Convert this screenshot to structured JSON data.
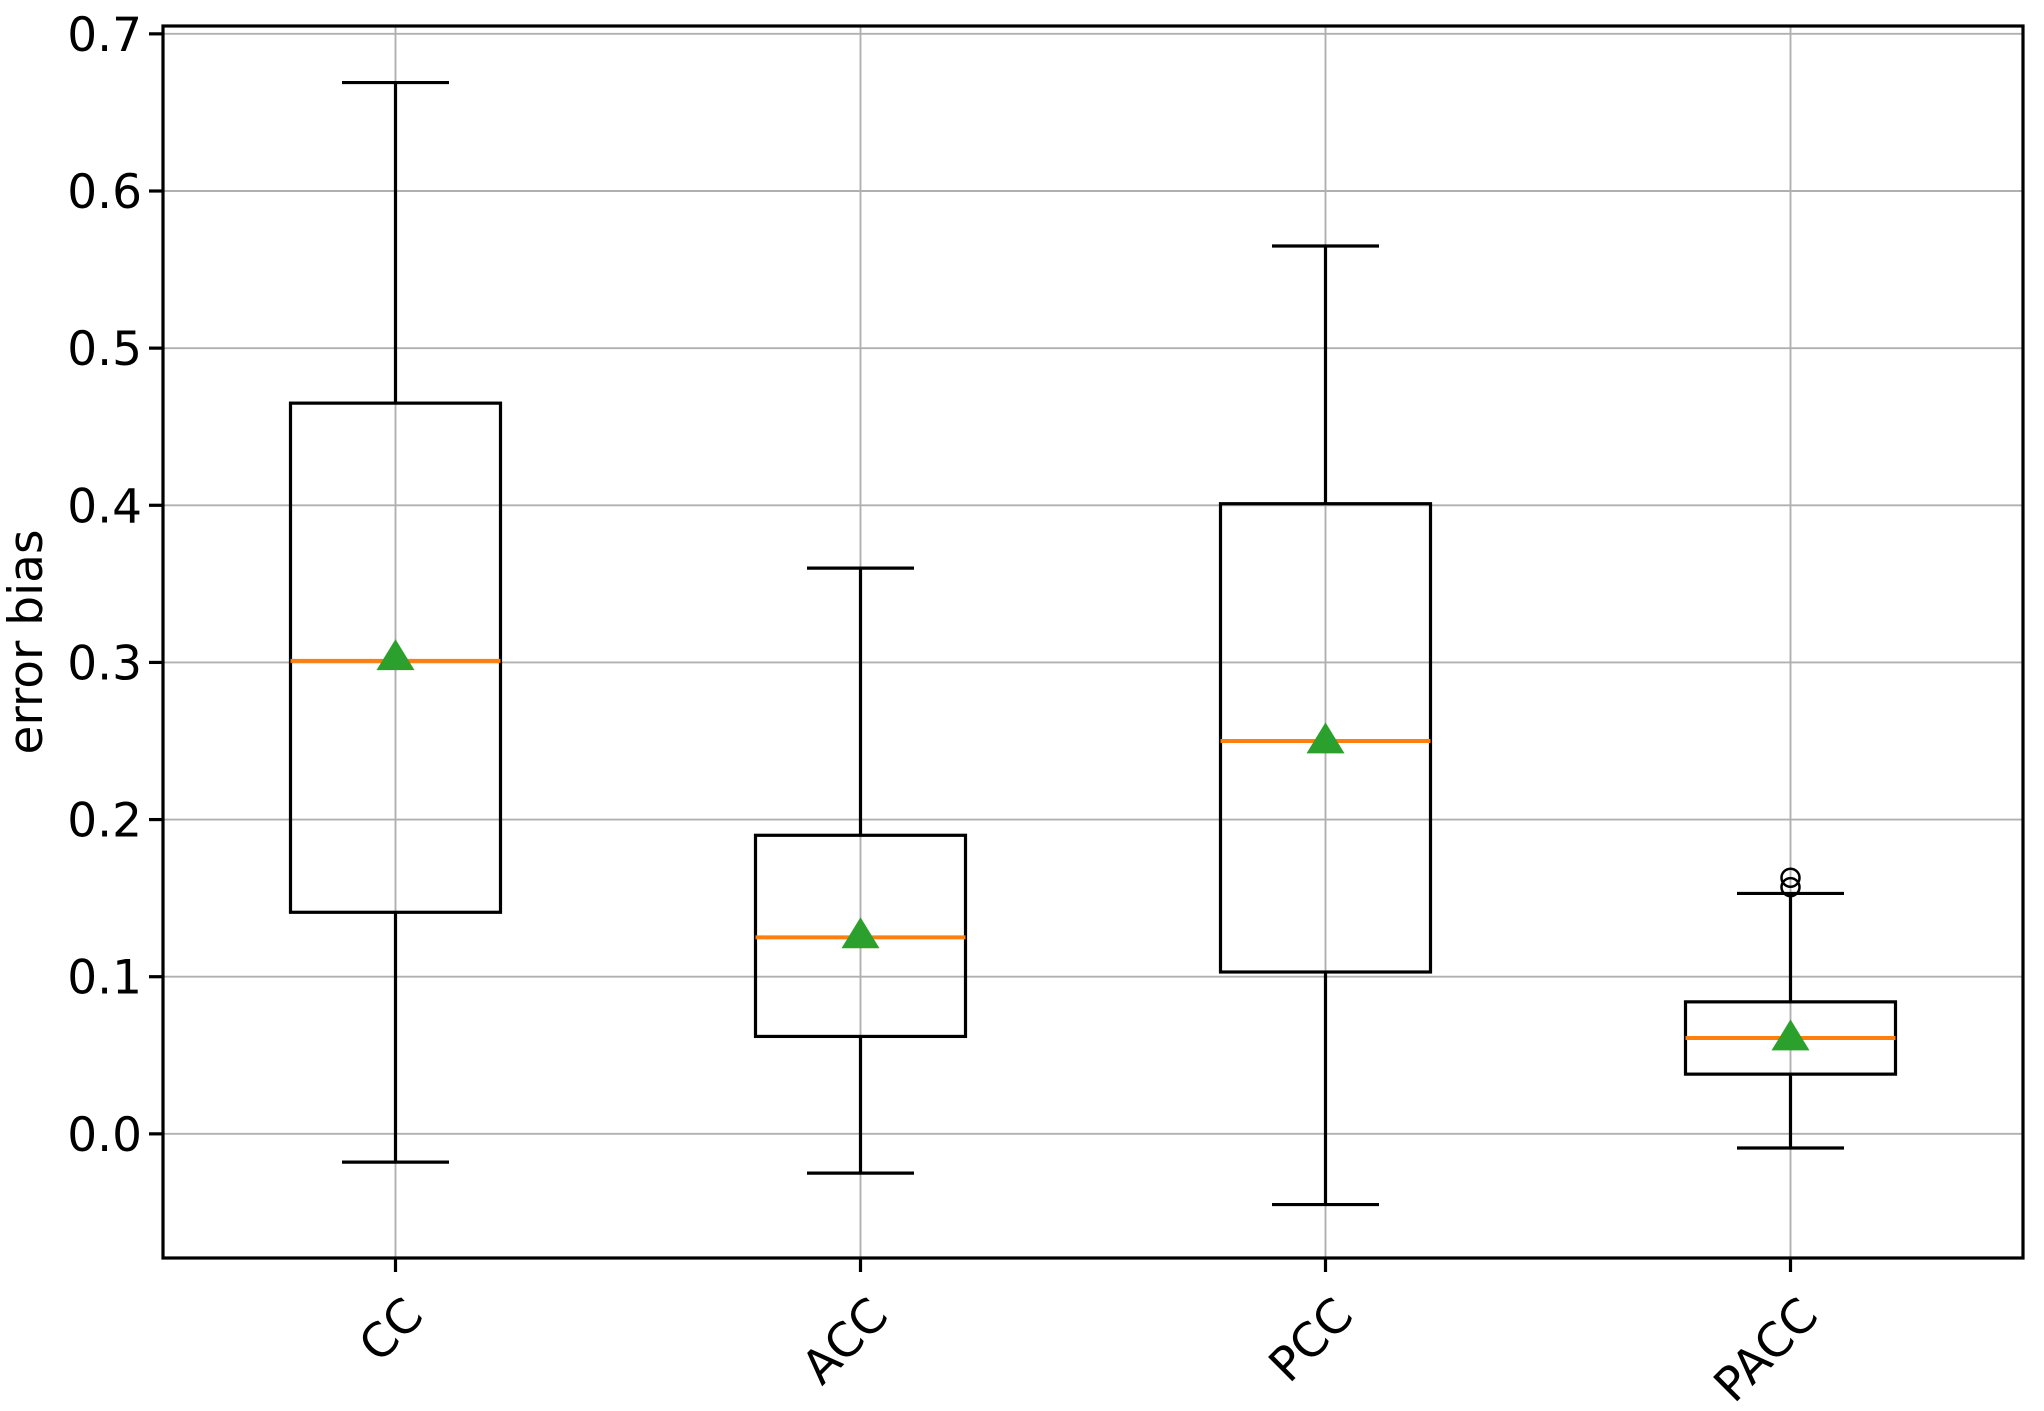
{
  "chart_data": {
    "type": "box",
    "title": "",
    "xlabel": "",
    "ylabel": "error bias",
    "categories": [
      "CC",
      "ACC",
      "PCC",
      "PACC"
    ],
    "ytick_labels": [
      "0.0",
      "0.1",
      "0.2",
      "0.3",
      "0.4",
      "0.5",
      "0.6",
      "0.7"
    ],
    "yticks": [
      0.0,
      0.1,
      0.2,
      0.3,
      0.4,
      0.5,
      0.6,
      0.7
    ],
    "ylim": [
      -0.079,
      0.705
    ],
    "grid": true,
    "legend": "none",
    "series": [
      {
        "label": "CC",
        "whislo": -0.018,
        "q1": 0.141,
        "med": 0.301,
        "mean": 0.304,
        "q3": 0.465,
        "whishi": 0.669,
        "fliers": []
      },
      {
        "label": "ACC",
        "whislo": -0.025,
        "q1": 0.062,
        "med": 0.125,
        "mean": 0.127,
        "q3": 0.19,
        "whishi": 0.36,
        "fliers": []
      },
      {
        "label": "PCC",
        "whislo": -0.045,
        "q1": 0.103,
        "med": 0.25,
        "mean": 0.251,
        "q3": 0.401,
        "whishi": 0.565,
        "fliers": []
      },
      {
        "label": "PACC",
        "whislo": -0.009,
        "q1": 0.038,
        "med": 0.061,
        "mean": 0.062,
        "q3": 0.084,
        "whishi": 0.153,
        "fliers": [
          0.157,
          0.163
        ]
      }
    ],
    "marker_styles": {
      "mean_marker": "triangle-up",
      "flier_marker": "open-circle"
    },
    "colors": {
      "box": "#000000",
      "whisker": "#000000",
      "median": "#ff7f0e",
      "mean": "#2ca02c",
      "grid": "#b0b0b0",
      "spine": "#000000",
      "background": "#ffffff"
    }
  }
}
